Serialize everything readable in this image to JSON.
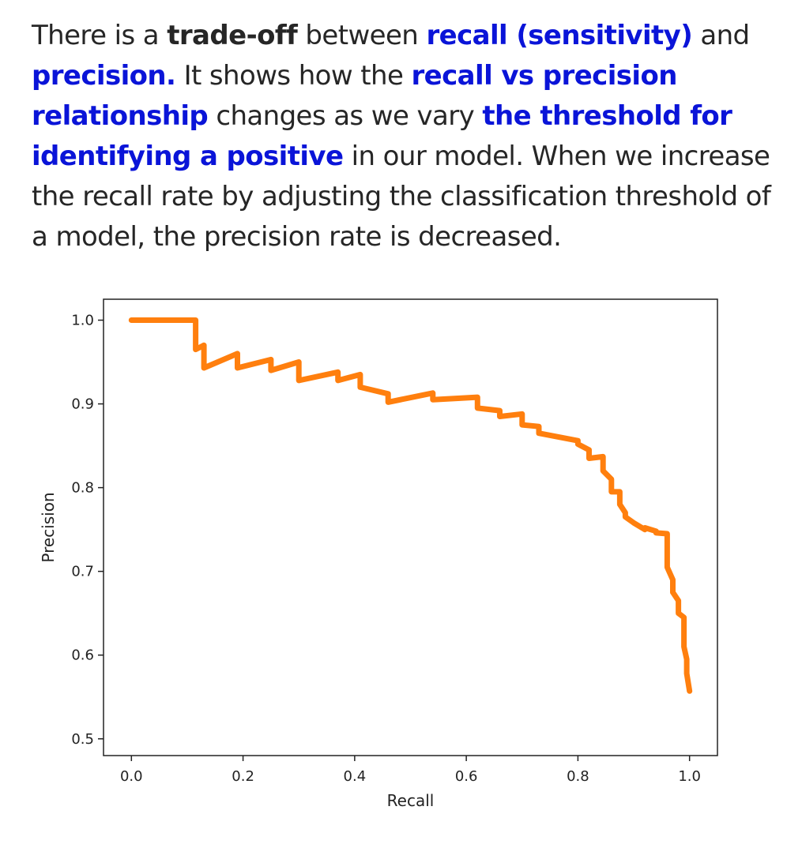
{
  "explanation": {
    "segments": [
      {
        "text": "There is a ",
        "style": "normal"
      },
      {
        "text": "trade-off",
        "style": "bold"
      },
      {
        "text": " between ",
        "style": "normal"
      },
      {
        "text": "recall (sensitivity)",
        "style": "blue"
      },
      {
        "text": " and ",
        "style": "normal"
      },
      {
        "text": "precision.",
        "style": "blue"
      },
      {
        "text": " It shows how the ",
        "style": "normal"
      },
      {
        "text": "recall vs precision relationship",
        "style": "blue"
      },
      {
        "text": " changes as we vary ",
        "style": "normal"
      },
      {
        "text": "the threshold for identifying a positive",
        "style": "blue"
      },
      {
        "text": " in our model.  When we increase the recall rate by adjusting the classification threshold of a model, the precision rate is decreased.",
        "style": "normal"
      }
    ]
  },
  "colors": {
    "highlight": "#0a14d8",
    "curve": "#ff7f0e",
    "text": "#262626"
  },
  "chart_data": {
    "type": "line",
    "title": "",
    "xlabel": "Recall",
    "ylabel": "Precision",
    "xlim": [
      -0.05,
      1.05
    ],
    "ylim": [
      0.48,
      1.025
    ],
    "xticks": [
      0.0,
      0.2,
      0.4,
      0.6,
      0.8,
      1.0
    ],
    "xtick_labels": [
      "0.0",
      "0.2",
      "0.4",
      "0.6",
      "0.8",
      "1.0"
    ],
    "yticks": [
      0.5,
      0.6,
      0.7,
      0.8,
      0.9,
      1.0
    ],
    "ytick_labels": [
      "0.5",
      "0.6",
      "0.7",
      "0.8",
      "0.9",
      "1.0"
    ],
    "grid": false,
    "series": [
      {
        "color": "#ff7f0e",
        "x": [
          0.0,
          0.115,
          0.115,
          0.13,
          0.13,
          0.19,
          0.19,
          0.25,
          0.25,
          0.3,
          0.3,
          0.37,
          0.37,
          0.41,
          0.41,
          0.46,
          0.46,
          0.54,
          0.54,
          0.62,
          0.62,
          0.66,
          0.66,
          0.7,
          0.7,
          0.73,
          0.73,
          0.8,
          0.8,
          0.82,
          0.82,
          0.845,
          0.845,
          0.86,
          0.86,
          0.875,
          0.875,
          0.885,
          0.885,
          0.9,
          0.9,
          0.92,
          0.92,
          0.94,
          0.94,
          0.96,
          0.96,
          0.97,
          0.97,
          0.98,
          0.98,
          0.99,
          0.99,
          0.995,
          0.995,
          1.0
        ],
        "y": [
          1.0,
          1.0,
          0.965,
          0.97,
          0.943,
          0.96,
          0.943,
          0.953,
          0.94,
          0.95,
          0.928,
          0.938,
          0.928,
          0.935,
          0.92,
          0.912,
          0.902,
          0.913,
          0.905,
          0.908,
          0.895,
          0.892,
          0.885,
          0.888,
          0.875,
          0.873,
          0.865,
          0.856,
          0.852,
          0.845,
          0.835,
          0.837,
          0.82,
          0.81,
          0.795,
          0.795,
          0.78,
          0.77,
          0.765,
          0.758,
          0.758,
          0.75,
          0.752,
          0.748,
          0.746,
          0.745,
          0.705,
          0.69,
          0.675,
          0.665,
          0.65,
          0.645,
          0.61,
          0.595,
          0.578,
          0.557
        ]
      }
    ]
  }
}
